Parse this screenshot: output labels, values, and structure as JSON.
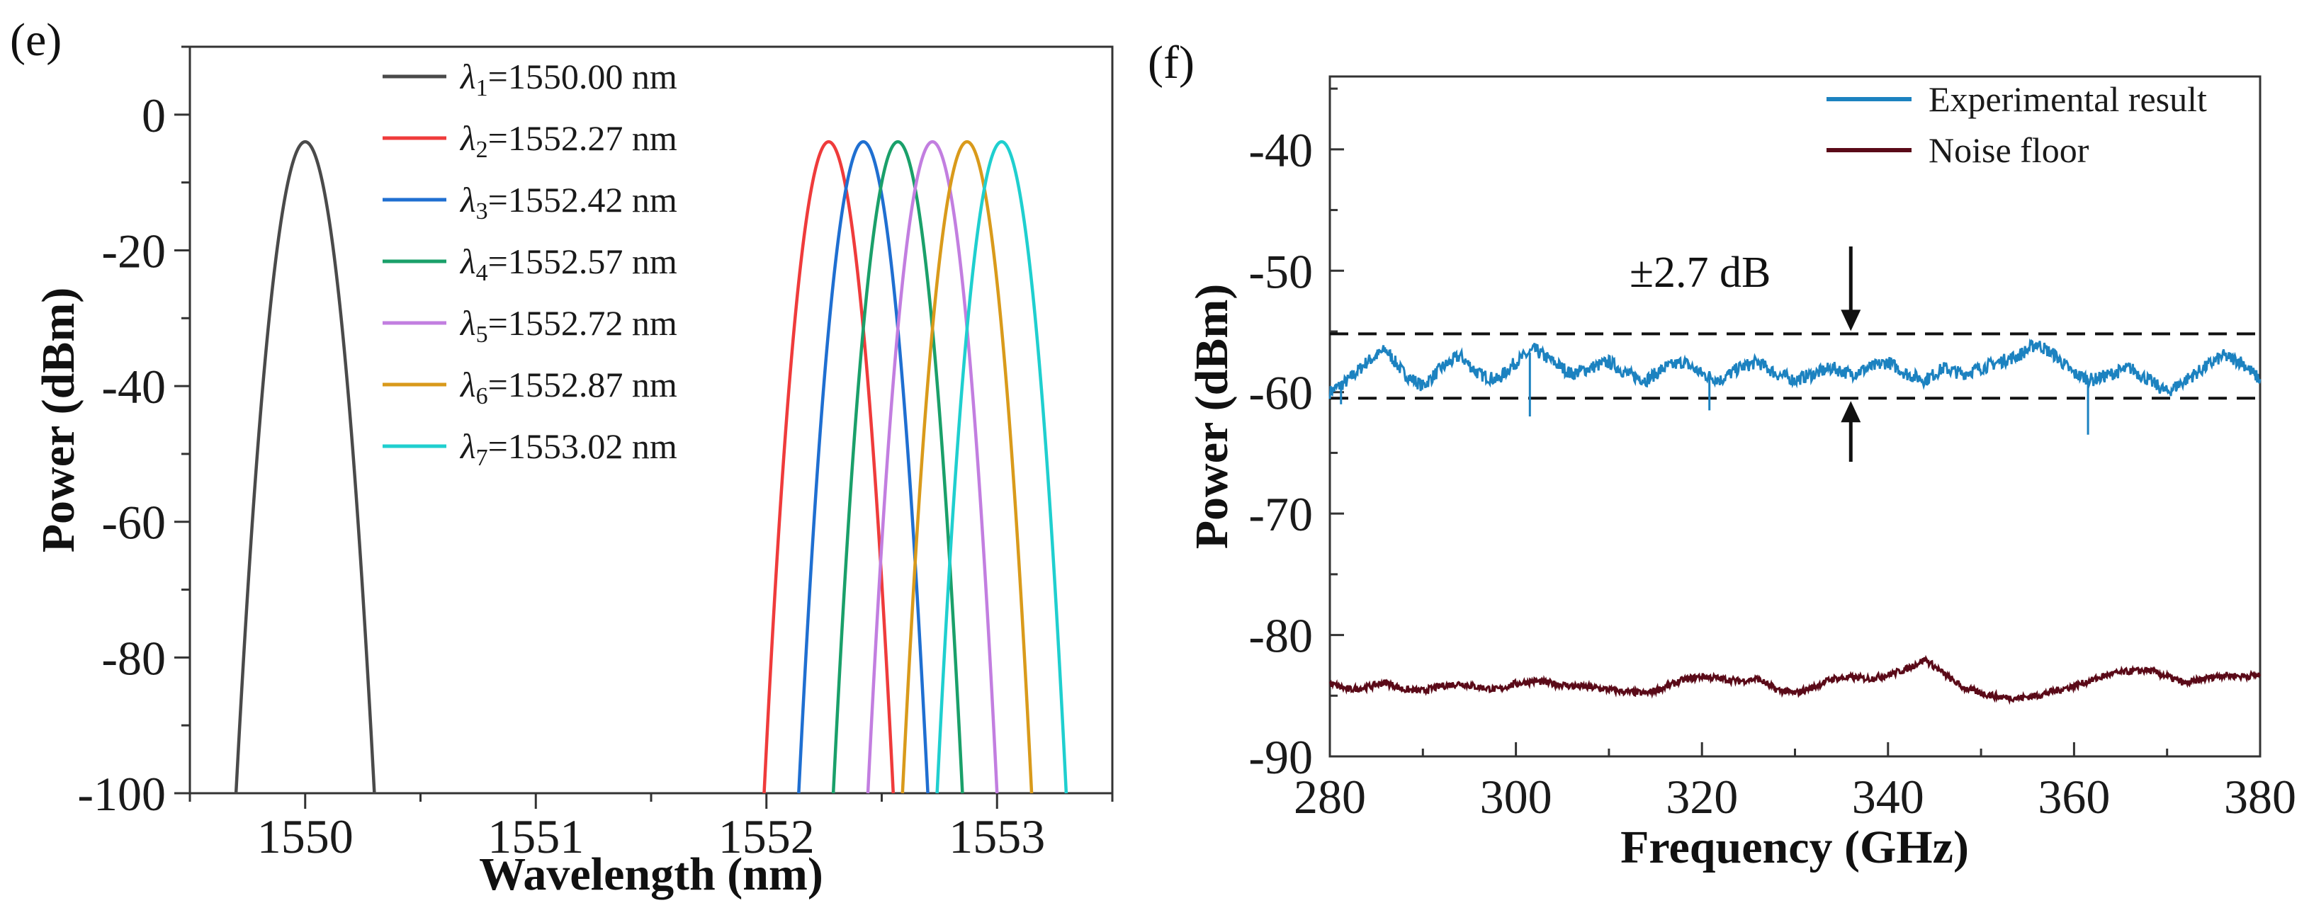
{
  "chart_data": [
    {
      "type": "line",
      "panel_label": "(e)",
      "xlabel": "Wavelength (nm)",
      "ylabel": "Power (dBm)",
      "xlim": [
        1549.5,
        1553.5
      ],
      "ylim": [
        -100,
        10
      ],
      "xticks": [
        1550,
        1551,
        1552,
        1553
      ],
      "xtick_labels": [
        "1550",
        "1551",
        "1552",
        "1553"
      ],
      "yticks": [
        0,
        -20,
        -40,
        -60,
        -80,
        -100
      ],
      "ytick_labels": [
        "0",
        "-20",
        "-40",
        "-60",
        "-80",
        "-100"
      ],
      "legend_position": "top-center",
      "peak_power": -4,
      "series": [
        {
          "name": "λ1=1550.00 nm",
          "sub": "1",
          "value_text": "=1550.00 nm",
          "center": 1550.0,
          "halfwidth": 0.3,
          "color": "#4a4a4a"
        },
        {
          "name": "λ2=1552.27 nm",
          "sub": "2",
          "value_text": "=1552.27 nm",
          "center": 1552.27,
          "halfwidth": 0.28,
          "color": "#ef3b3b"
        },
        {
          "name": "λ3=1552.42 nm",
          "sub": "3",
          "value_text": "=1552.42 nm",
          "center": 1552.42,
          "halfwidth": 0.28,
          "color": "#1f6fd1"
        },
        {
          "name": "λ4=1552.57 nm",
          "sub": "4",
          "value_text": "=1552.57 nm",
          "center": 1552.57,
          "halfwidth": 0.28,
          "color": "#1aa06a"
        },
        {
          "name": "λ5=1552.72 nm",
          "sub": "5",
          "value_text": "=1552.72 nm",
          "center": 1552.72,
          "halfwidth": 0.28,
          "color": "#c27ee0"
        },
        {
          "name": "λ6=1552.87 nm",
          "sub": "6",
          "value_text": "=1552.87 nm",
          "center": 1552.87,
          "halfwidth": 0.28,
          "color": "#d99a1b"
        },
        {
          "name": "λ7=1553.02 nm",
          "sub": "7",
          "value_text": "=1553.02 nm",
          "center": 1553.02,
          "halfwidth": 0.28,
          "color": "#1fcfcf"
        }
      ]
    },
    {
      "type": "line",
      "panel_label": "(f)",
      "xlabel": "Frequency (GHz)",
      "ylabel": "Power (dBm)",
      "xlim": [
        280,
        380
      ],
      "ylim": [
        -90,
        -34
      ],
      "xticks": [
        280,
        300,
        320,
        340,
        360,
        380
      ],
      "xtick_labels": [
        "280",
        "300",
        "320",
        "340",
        "360",
        "380"
      ],
      "yticks": [
        -40,
        -50,
        -60,
        -70,
        -80,
        -90
      ],
      "ytick_labels": [
        "-40",
        "-50",
        "-60",
        "-70",
        "-80",
        "-90"
      ],
      "legend_position": "top-right",
      "annotation": {
        "text": "±2.7 dB",
        "x": 336,
        "upper_level": -55.2,
        "lower_level": -60.5
      },
      "series": [
        {
          "name": "Experimental result",
          "color": "#1c82c0",
          "x": [
            280,
            282,
            284,
            286,
            288,
            290,
            292,
            294,
            296,
            298,
            300,
            302,
            304,
            306,
            308,
            310,
            312,
            314,
            316,
            318,
            320,
            322,
            324,
            326,
            328,
            330,
            332,
            334,
            336,
            338,
            340,
            342,
            344,
            346,
            348,
            350,
            352,
            354,
            356,
            358,
            360,
            362,
            364,
            366,
            368,
            370,
            372,
            374,
            376,
            378,
            380
          ],
          "y": [
            -60,
            -59,
            -57.5,
            -56.5,
            -58.5,
            -59.5,
            -58,
            -57,
            -58.5,
            -59,
            -57.5,
            -56.5,
            -57.5,
            -58.5,
            -58,
            -57.5,
            -58.5,
            -59,
            -58,
            -57.5,
            -58.5,
            -59,
            -58,
            -57.5,
            -58.5,
            -59,
            -58.5,
            -58,
            -58.5,
            -58,
            -57.5,
            -58.5,
            -59,
            -58,
            -58.5,
            -58,
            -57.5,
            -57,
            -56,
            -57,
            -58.5,
            -59,
            -58.5,
            -58,
            -59,
            -60,
            -59,
            -58,
            -57,
            -57.5,
            -59
          ]
        },
        {
          "name": "Noise floor",
          "color": "#5a0a18",
          "x": [
            280,
            282,
            284,
            286,
            288,
            290,
            292,
            294,
            296,
            298,
            300,
            302,
            304,
            306,
            308,
            310,
            312,
            314,
            316,
            318,
            320,
            322,
            324,
            326,
            328,
            330,
            332,
            334,
            336,
            338,
            340,
            342,
            344,
            346,
            348,
            350,
            352,
            354,
            356,
            358,
            360,
            362,
            364,
            366,
            368,
            370,
            372,
            374,
            376,
            378,
            380
          ],
          "y": [
            -84,
            -84.5,
            -84.3,
            -83.9,
            -84.5,
            -84.6,
            -84.2,
            -84,
            -84.3,
            -84.5,
            -84,
            -83.8,
            -84,
            -84.2,
            -84.3,
            -84.5,
            -84.7,
            -84.8,
            -84.3,
            -83.7,
            -83.4,
            -83.6,
            -83.8,
            -83.6,
            -84.5,
            -84.8,
            -84.3,
            -83.6,
            -83.5,
            -83.6,
            -83.3,
            -82.8,
            -82,
            -83.2,
            -84.3,
            -84.8,
            -85.1,
            -85.2,
            -85,
            -84.6,
            -84.2,
            -83.7,
            -83.2,
            -83,
            -82.9,
            -83.4,
            -84,
            -83.6,
            -83.3,
            -83.4,
            -83.3
          ]
        }
      ]
    }
  ]
}
